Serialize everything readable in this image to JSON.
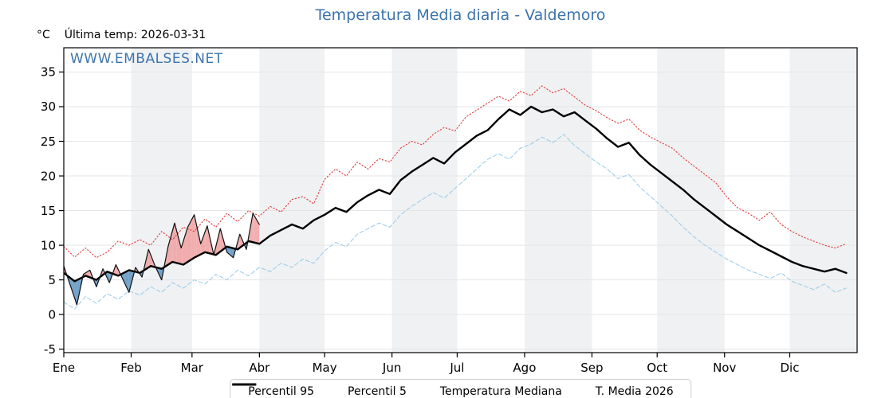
{
  "title": "Temperatura Media diaria - Valdemoro",
  "header": {
    "unit": "°C",
    "last_temp": "Última temp: 2026-03-31"
  },
  "watermark": "WWW.EMBALSES.NET",
  "legend": {
    "p95": "Percentil 95",
    "p5": "Percentil 5",
    "median": "Temperatura Mediana",
    "t2026": "T. Media 2026"
  },
  "colors": {
    "title": "#3c74ad",
    "watermark": "#3c74ad",
    "p95": "#e03b3b",
    "p5": "#9fcfe8",
    "median": "#000000",
    "t2026": "#111111",
    "fill_above": "#f0a0a0",
    "fill_below": "#5b90be",
    "band": "#eff1f3",
    "grid": "#e5e5e5",
    "axis": "#000000"
  },
  "chart_data": {
    "type": "line",
    "title": "Temperatura Media diaria - Valdemoro",
    "ylabel": "°C",
    "x_tick_labels": [
      "Ene",
      "Feb",
      "Mar",
      "Abr",
      "May",
      "Jun",
      "Jul",
      "Ago",
      "Sep",
      "Oct",
      "Nov",
      "Dic"
    ],
    "month_start_days": [
      0,
      31,
      59,
      90,
      120,
      151,
      181,
      212,
      243,
      273,
      304,
      334
    ],
    "y_ticks": [
      -5,
      0,
      5,
      10,
      15,
      20,
      25,
      30,
      35
    ],
    "ylim": [
      -5.5,
      38.5
    ],
    "x_range_days": [
      0,
      365
    ],
    "legend_position": "bottom",
    "series": [
      {
        "name": "Percentil 95",
        "style": "dotted",
        "color_key": "p95",
        "step": 5,
        "values": [
          9.8,
          8.3,
          9.6,
          8.2,
          9.0,
          10.6,
          10.0,
          10.8,
          10.0,
          12.0,
          10.8,
          12.6,
          12.0,
          13.8,
          12.6,
          14.6,
          13.4,
          15.0,
          14.2,
          15.6,
          14.8,
          16.6,
          17.0,
          16.0,
          19.5,
          21.0,
          20.0,
          22.0,
          21.0,
          22.5,
          22.0,
          24.0,
          25.0,
          24.5,
          26.0,
          27.0,
          26.5,
          28.5,
          29.5,
          30.5,
          31.5,
          30.8,
          32.2,
          31.6,
          33.0,
          32.0,
          32.6,
          31.4,
          30.2,
          29.4,
          28.4,
          27.6,
          28.2,
          26.6,
          25.6,
          24.8,
          24.0,
          22.6,
          21.4,
          20.2,
          19.0,
          17.0,
          15.4,
          14.6,
          13.6,
          14.8,
          13.0,
          12.0,
          11.2,
          10.6,
          10.0,
          9.6,
          10.2
        ]
      },
      {
        "name": "Percentil 5",
        "style": "dashed",
        "color_key": "p5",
        "step": 5,
        "values": [
          1.8,
          0.8,
          2.6,
          1.6,
          3.0,
          2.2,
          3.4,
          2.8,
          4.0,
          3.2,
          4.6,
          3.8,
          5.0,
          4.4,
          5.8,
          5.0,
          6.4,
          5.6,
          6.8,
          6.2,
          7.4,
          6.8,
          8.0,
          7.4,
          9.2,
          10.4,
          9.8,
          11.6,
          12.4,
          13.2,
          12.6,
          14.4,
          15.6,
          16.6,
          17.6,
          16.8,
          18.2,
          19.6,
          21.0,
          22.4,
          23.2,
          22.4,
          24.0,
          24.6,
          25.6,
          24.8,
          26.0,
          24.4,
          23.2,
          22.0,
          21.0,
          19.6,
          20.2,
          18.4,
          17.0,
          15.6,
          14.2,
          12.6,
          11.2,
          10.0,
          9.0,
          8.0,
          7.2,
          6.4,
          5.8,
          5.2,
          6.0,
          4.8,
          4.2,
          3.6,
          4.4,
          3.2,
          3.8
        ]
      },
      {
        "name": "Temperatura Mediana",
        "style": "solid-thick",
        "color_key": "median",
        "step": 5,
        "values": [
          6.0,
          4.8,
          5.6,
          5.0,
          6.2,
          5.6,
          6.4,
          6.0,
          7.0,
          6.6,
          7.6,
          7.2,
          8.2,
          9.0,
          8.6,
          9.8,
          9.4,
          10.6,
          10.2,
          11.4,
          12.2,
          13.0,
          12.4,
          13.6,
          14.4,
          15.4,
          14.8,
          16.2,
          17.2,
          18.0,
          17.4,
          19.4,
          20.6,
          21.6,
          22.6,
          21.8,
          23.4,
          24.6,
          25.8,
          26.6,
          28.2,
          29.6,
          28.8,
          30.0,
          29.2,
          29.6,
          28.6,
          29.2,
          28.0,
          26.8,
          25.4,
          24.2,
          24.8,
          23.0,
          21.6,
          20.4,
          19.2,
          18.0,
          16.6,
          15.4,
          14.2,
          13.0,
          12.0,
          11.0,
          10.0,
          9.2,
          8.4,
          7.6,
          7.0,
          6.6,
          6.2,
          6.6,
          6.0
        ]
      },
      {
        "name": "T. Media 2026",
        "style": "solid-thin",
        "color_key": "t2026",
        "step": 3,
        "fill_vs": "Temperatura Mediana",
        "values": [
          7.0,
          4.2,
          1.4,
          5.8,
          6.4,
          4.0,
          6.6,
          4.6,
          7.2,
          5.2,
          3.2,
          6.8,
          5.4,
          9.4,
          7.0,
          5.0,
          9.8,
          13.2,
          9.6,
          12.6,
          14.4,
          10.2,
          12.8,
          8.6,
          12.4,
          9.0,
          8.2,
          11.6,
          9.4,
          14.6,
          13.0
        ]
      }
    ]
  }
}
